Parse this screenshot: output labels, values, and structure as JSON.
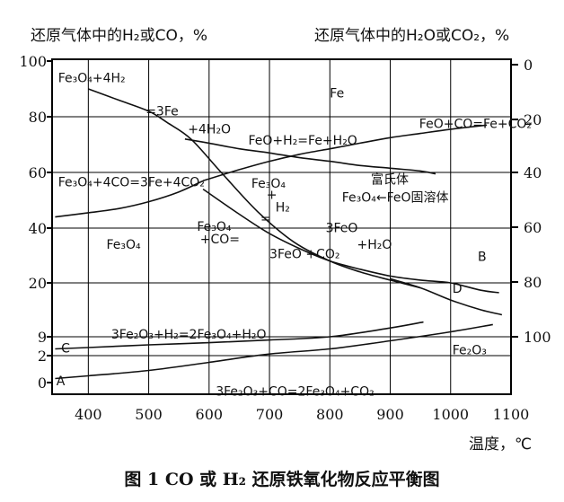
{
  "caption": "图 1 CO 或 H₂ 还原铁氧化物反应平衡图",
  "chart_data": {
    "type": "line",
    "left_axis_title": "还原气体中的H₂或CO，%",
    "right_axis_title": "还原气体中的H₂O或CO₂，%",
    "xlabel": "温度，℃",
    "x_ticks": [
      "400",
      "500",
      "600",
      "700",
      "800",
      "900",
      "1000",
      "1100"
    ],
    "xlim": [
      340,
      1100
    ],
    "left_ticks": [
      "0",
      "2",
      "9",
      "20",
      "40",
      "60",
      "80",
      "100"
    ],
    "right_ticks": [
      "0",
      "20",
      "40",
      "60",
      "80",
      "100"
    ],
    "grid": true,
    "series": [
      {
        "id": "h2-fe3o4-fe",
        "x": [
          400,
          450,
          500,
          530,
          570,
          620,
          680,
          740,
          800,
          850,
          900,
          950
        ],
        "y": [
          90,
          86,
          82,
          78,
          72,
          60,
          46,
          35,
          28,
          24,
          21,
          19
        ]
      },
      {
        "id": "h2-feo-fe",
        "x": [
          560,
          600,
          650,
          700,
          750,
          800,
          850,
          900,
          950,
          975
        ],
        "y": [
          72,
          70.5,
          68.5,
          67,
          65.3,
          64,
          62.5,
          61.5,
          60.5,
          59.5
        ]
      },
      {
        "id": "co-fe3o4-fe",
        "x": [
          345,
          400,
          450,
          500,
          550,
          590
        ],
        "y": [
          44,
          45.5,
          47,
          49.5,
          53,
          57
        ]
      },
      {
        "id": "co-feo-fe",
        "x": [
          590,
          650,
          700,
          750,
          800,
          850,
          900,
          950,
          1000,
          1060
        ],
        "y": [
          57,
          61,
          64,
          66.5,
          68.5,
          70.5,
          72.5,
          74,
          75.5,
          77
        ]
      },
      {
        "id": "curve-B",
        "x": [
          590,
          650,
          700,
          750,
          800,
          850,
          900,
          950,
          1000,
          1050,
          1080
        ],
        "y": [
          54,
          45,
          38,
          32.5,
          28,
          25,
          22.5,
          21,
          20,
          18.5,
          18
        ]
      },
      {
        "id": "curve-D",
        "x": [
          900,
          950,
          1000,
          1050,
          1085
        ],
        "y": [
          21.5,
          19,
          16.5,
          14.5,
          13.5
        ]
      },
      {
        "id": "curve-C",
        "x": [
          345,
          400,
          500,
          600,
          700,
          800,
          900,
          955
        ],
        "y": [
          4.5,
          5,
          6,
          6.8,
          7.8,
          9,
          10.8,
          12
        ]
      },
      {
        "id": "curve-A",
        "x": [
          345,
          400,
          500,
          600,
          700,
          800,
          900,
          1000,
          1070
        ],
        "y": [
          0.3,
          0.5,
          0.9,
          1.5,
          2.6,
          4.5,
          7.5,
          10,
          11.5
        ]
      }
    ],
    "annotations": [
      {
        "text": "Fe₃O₄+4H₂",
        "x": 350,
        "y": 92.5
      },
      {
        "text": "=3Fe",
        "x": 495,
        "y": 80.5
      },
      {
        "text": "+4H₂O",
        "x": 565,
        "y": 74
      },
      {
        "text": "FeO+H₂=Fe+H₂O",
        "x": 665,
        "y": 70
      },
      {
        "text": "Fe",
        "x": 800,
        "y": 87
      },
      {
        "text": "FeO+CO=Fe+CO₂",
        "x": 948,
        "y": 76
      },
      {
        "text": "富氏体",
        "x": 868,
        "y": 56
      },
      {
        "text": "Fe₃O₄+4CO=3Fe+4CO₂",
        "x": 350,
        "y": 55
      },
      {
        "text": "Fe₃O₄",
        "x": 670,
        "y": 54.5
      },
      {
        "text": "+",
        "x": 695,
        "y": 50.5
      },
      {
        "text": "H₂",
        "x": 710,
        "y": 46
      },
      {
        "text": "=",
        "x": 685,
        "y": 42
      },
      {
        "text": "Fe₃O₄←FeO固溶体",
        "x": 820,
        "y": 49.5
      },
      {
        "text": "Fe₃O₄",
        "x": 580,
        "y": 39
      },
      {
        "text": "+CO=",
        "x": 585,
        "y": 34.5
      },
      {
        "text": "3FeO",
        "x": 793,
        "y": 38.5
      },
      {
        "text": "+H₂O",
        "x": 845,
        "y": 32.5
      },
      {
        "text": "3FeO +CO₂",
        "x": 700,
        "y": 29
      },
      {
        "text": "Fe₃O₄",
        "x": 430,
        "y": 32.5
      },
      {
        "text": "B",
        "x": 1045,
        "y": 28
      },
      {
        "text": "D",
        "x": 1003,
        "y": 18
      },
      {
        "text": "3Fe₂O₃+H₂=2Fe₃O₄+H₂O",
        "x": 438,
        "y": 8.4
      },
      {
        "text": "C",
        "x": 355,
        "y": 3.2
      },
      {
        "text": "A",
        "x": 347,
        "y": -0.6
      },
      {
        "text": "3Fe₂O₃+CO=2Fe₃O₄+CO₂",
        "x": 611,
        "y": -2.8
      },
      {
        "text": "Fe₂O₃",
        "x": 1003,
        "y": 2.5
      }
    ]
  }
}
